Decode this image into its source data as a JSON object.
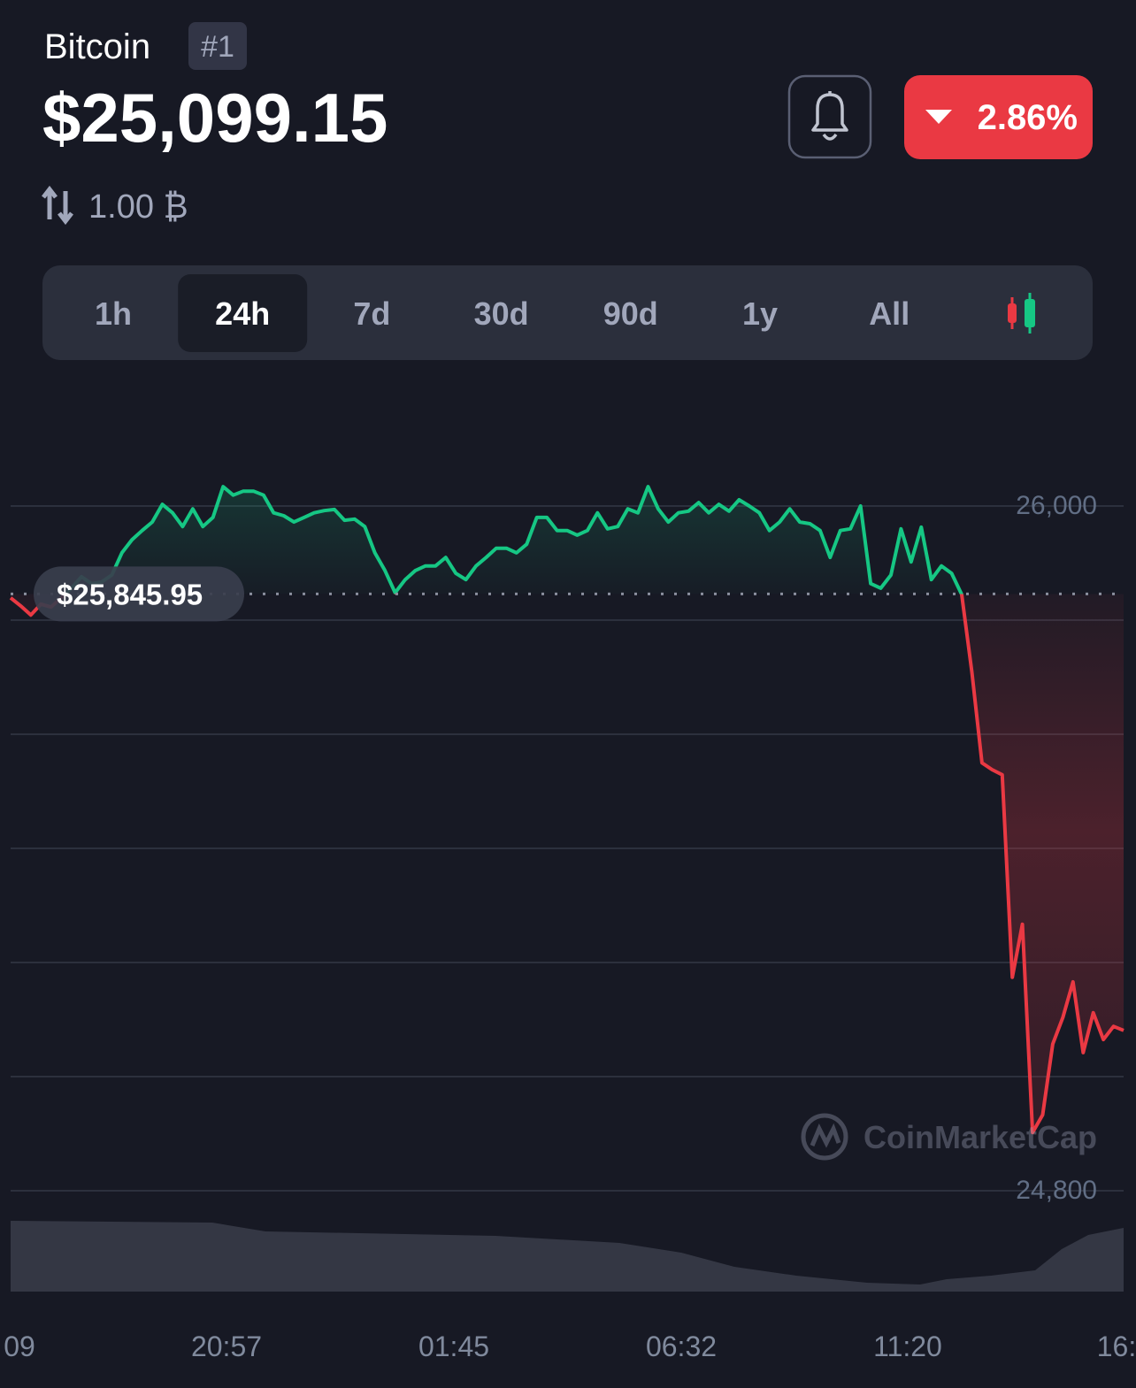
{
  "header": {
    "name": "Bitcoin",
    "rank": "#1",
    "price": "$25,099.15",
    "change": "2.86%",
    "conversion": "1.00 ₿"
  },
  "tabs": [
    "1h",
    "24h",
    "7d",
    "30d",
    "90d",
    "1y",
    "All"
  ],
  "selected_tab": 1,
  "chart_data": {
    "type": "line",
    "values": [
      25839,
      25825,
      25809,
      25828,
      25823,
      25839,
      25856,
      25876,
      25864,
      25867,
      25879,
      25918,
      25941,
      25957,
      25972,
      26003,
      25988,
      25964,
      25995,
      25964,
      25980,
      26034,
      26019,
      26026,
      26026,
      26019,
      25988,
      25983,
      25972,
      25980,
      25988,
      25992,
      25994,
      25975,
      25977,
      25964,
      25918,
      25887,
      25848,
      25871,
      25887,
      25895,
      25895,
      25910,
      25882,
      25871,
      25895,
      25910,
      25926,
      25926,
      25918,
      25933,
      25980,
      25980,
      25957,
      25957,
      25949,
      25957,
      25988,
      25960,
      25964,
      25995,
      25988,
      26034,
      25995,
      25972,
      25988,
      25991,
      26006,
      25988,
      26003,
      25991,
      26011,
      26000,
      25988,
      25957,
      25972,
      25995,
      25972,
      25969,
      25957,
      25910,
      25957,
      25960,
      26000,
      25864,
      25856,
      25879,
      25960,
      25902,
      25963,
      25871,
      25895,
      25882,
      25845,
      25709,
      25550,
      25538,
      25529,
      25174,
      25267,
      24902,
      24933,
      25057,
      25104,
      25166,
      25042,
      25112,
      25065,
      25088,
      25081
    ],
    "up_color": "#16c784",
    "down_color": "#ea3943",
    "reference": {
      "value": 25845.95,
      "label": "$25,845.95"
    },
    "ylim": [
      24800,
      26200
    ],
    "yticks": [
      {
        "value": 26000,
        "label": "26,000"
      },
      {
        "value": 25800,
        "label": null
      },
      {
        "value": 25600,
        "label": null
      },
      {
        "value": 25400,
        "label": null
      },
      {
        "value": 25200,
        "label": null
      },
      {
        "value": 25000,
        "label": null
      },
      {
        "value": 24800,
        "label": "24,800"
      }
    ],
    "grid": true,
    "x_labels": [
      "09",
      "20:57",
      "01:45",
      "06:32",
      "11:20",
      "16:"
    ],
    "watermark": "CoinMarketCap"
  }
}
